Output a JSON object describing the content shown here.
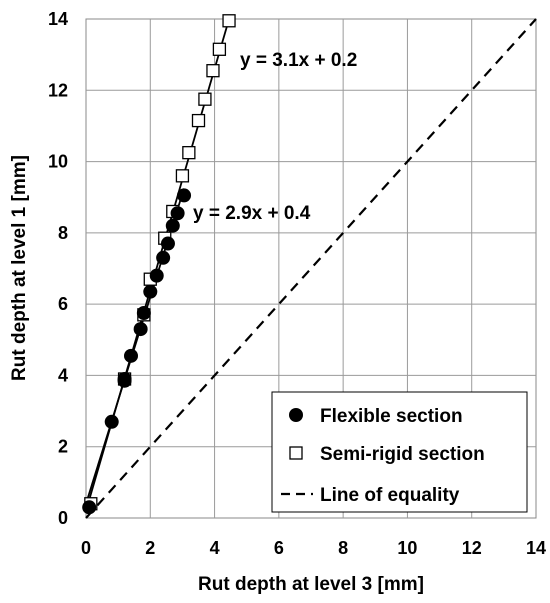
{
  "chart_data": {
    "type": "scatter",
    "title": "",
    "xlabel": "Rut depth at level 3 [mm]",
    "ylabel": "Rut depth at level 1 [mm]",
    "xlim": [
      0,
      14
    ],
    "ylim": [
      0,
      14
    ],
    "xticks": [
      "0",
      "2",
      "4",
      "6",
      "8",
      "10",
      "12",
      "14"
    ],
    "yticks": [
      "0",
      "2",
      "4",
      "6",
      "8",
      "10",
      "12",
      "14"
    ],
    "grid": true,
    "legend_position": "bottom-right",
    "series": [
      {
        "name": "Flexible section",
        "marker": "filled-circle",
        "color": "#000000",
        "points": [
          [
            0.1,
            0.3
          ],
          [
            0.8,
            2.7
          ],
          [
            1.2,
            3.9
          ],
          [
            1.2,
            3.85
          ],
          [
            1.4,
            4.55
          ],
          [
            1.7,
            5.3
          ],
          [
            1.8,
            5.75
          ],
          [
            2.0,
            6.35
          ],
          [
            2.2,
            6.8
          ],
          [
            2.4,
            7.3
          ],
          [
            2.55,
            7.7
          ],
          [
            2.7,
            8.2
          ],
          [
            2.85,
            8.55
          ],
          [
            3.05,
            9.05
          ]
        ]
      },
      {
        "name": "Semi-rigid section",
        "marker": "open-square",
        "color": "#000000",
        "points": [
          [
            0.15,
            0.4
          ],
          [
            1.2,
            3.9
          ],
          [
            1.8,
            5.7
          ],
          [
            2.0,
            6.7
          ],
          [
            2.45,
            7.85
          ],
          [
            2.7,
            8.6
          ],
          [
            3.0,
            9.6
          ],
          [
            3.2,
            10.25
          ],
          [
            3.5,
            11.15
          ],
          [
            3.7,
            11.75
          ],
          [
            3.95,
            12.55
          ],
          [
            4.15,
            13.15
          ],
          [
            4.45,
            13.95
          ]
        ]
      },
      {
        "name": "Line of equality",
        "style": "dashed",
        "color": "#000000",
        "points": [
          [
            0,
            0
          ],
          [
            14,
            14
          ]
        ]
      }
    ],
    "trendlines": [
      {
        "equation": "y = 3.1x + 0.2",
        "slope": 3.1,
        "intercept": 0.2,
        "x_range": [
          0,
          4.45
        ]
      },
      {
        "equation": "y = 2.9x + 0.4",
        "slope": 2.9,
        "intercept": 0.4,
        "x_range": [
          0,
          3.05
        ]
      }
    ]
  }
}
